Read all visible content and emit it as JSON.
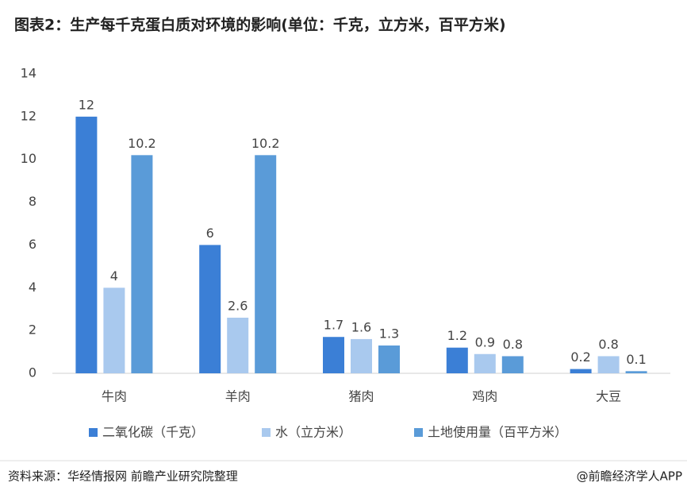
{
  "chart_data": {
    "type": "bar",
    "title": "图表2：生产每千克蛋白质对环境的影响(单位：千克，立方米，百平方米)",
    "categories": [
      "牛肉",
      "羊肉",
      "猪肉",
      "鸡肉",
      "大豆"
    ],
    "series": [
      {
        "name": "二氧化碳（千克）",
        "color": "#3b7fd6",
        "values": [
          12,
          6,
          1.7,
          1.2,
          0.2
        ]
      },
      {
        "name": "水（立方米）",
        "color": "#a9c9ee",
        "values": [
          4,
          2.6,
          1.6,
          0.9,
          0.8
        ]
      },
      {
        "name": "土地使用量（百平方米）",
        "color": "#5a9bd8",
        "values": [
          10.2,
          10.2,
          1.3,
          0.8,
          0.1
        ]
      }
    ],
    "ylim": [
      0,
      14
    ],
    "yticks": [
      0,
      2,
      4,
      6,
      8,
      10,
      12,
      14
    ],
    "grid": false,
    "legend": "bottom",
    "source": "资料来源：华经情报网 前瞻产业研究院整理",
    "credit": "@前瞻经济学人APP"
  }
}
